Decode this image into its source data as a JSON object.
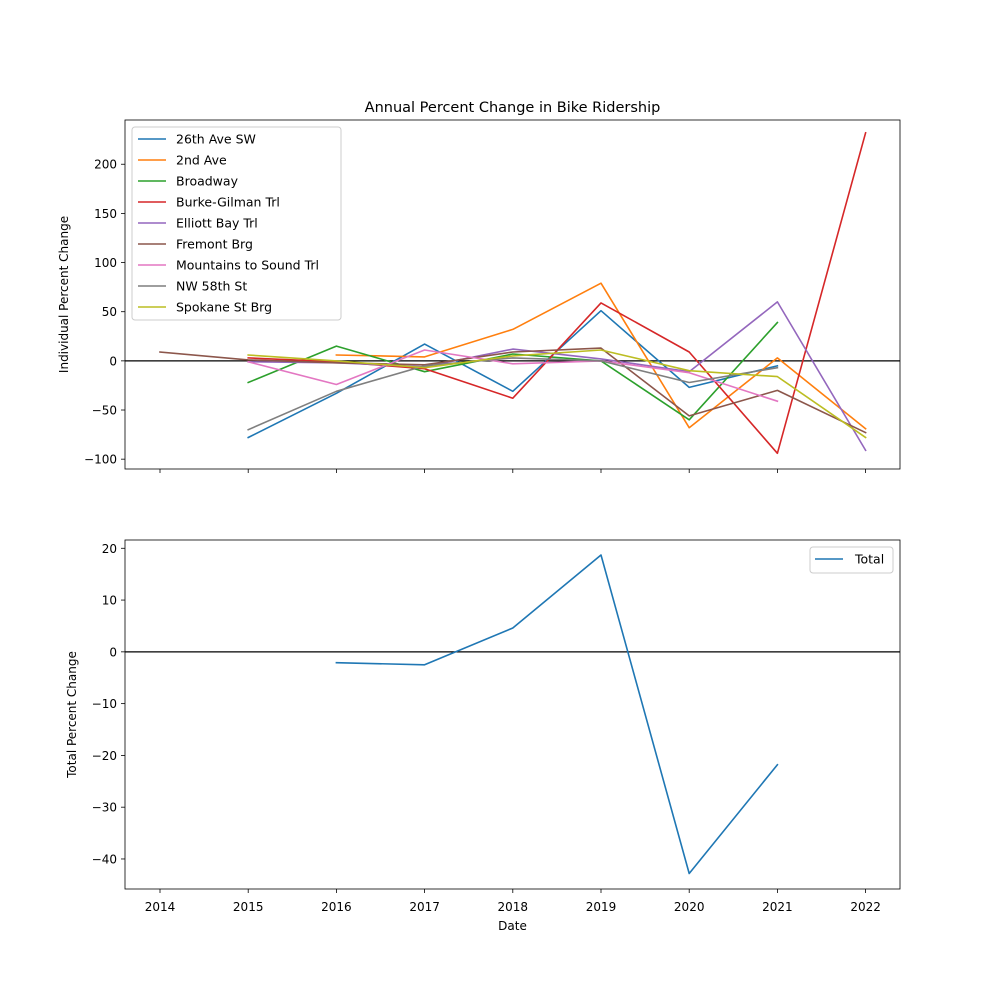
{
  "chart_data": [
    {
      "type": "line",
      "title": "Annual Percent Change in Bike Ridership",
      "xlabel": "",
      "ylabel": "Individual Percent Change",
      "x": [
        2014,
        2015,
        2016,
        2017,
        2018,
        2019,
        2020,
        2021,
        2022
      ],
      "ylim": [
        -110,
        245
      ],
      "yticks": [
        -100,
        -50,
        0,
        50,
        100,
        150,
        200
      ],
      "ytick_labels": [
        "−100",
        "−50",
        "0",
        "50",
        "100",
        "150",
        "200"
      ],
      "zero_line": true,
      "legend_position": "upper-left",
      "series": [
        {
          "name": "26th Ave SW",
          "color": "#1f77b4",
          "values": [
            null,
            -78,
            -33,
            17,
            -31,
            51,
            -27,
            -5,
            null
          ]
        },
        {
          "name": "2nd Ave",
          "color": "#ff7f0e",
          "values": [
            null,
            null,
            6,
            4,
            32,
            79,
            -68,
            3,
            -69
          ]
        },
        {
          "name": "Broadway",
          "color": "#2ca02c",
          "values": [
            null,
            -22,
            15,
            -11,
            7,
            0,
            -60,
            39,
            null
          ]
        },
        {
          "name": "Burke-Gilman Trl",
          "color": "#d62728",
          "values": [
            null,
            3,
            -1,
            -8,
            -38,
            59,
            9,
            -94,
            232
          ]
        },
        {
          "name": "Elliott Bay Trl",
          "color": "#9467bd",
          "values": [
            null,
            -1,
            -2,
            -6,
            12,
            2,
            -11,
            60,
            -91
          ]
        },
        {
          "name": "Fremont Brg",
          "color": "#8c564b",
          "values": [
            9,
            1,
            -2,
            -4,
            9,
            13,
            -56,
            -30,
            -73
          ]
        },
        {
          "name": "Mountains to Sound Trl",
          "color": "#e377c2",
          "values": [
            null,
            -1,
            -24,
            11,
            -3,
            0,
            -12,
            -41,
            null
          ]
        },
        {
          "name": "NW 58th St",
          "color": "#7f7f7f",
          "values": [
            null,
            -70,
            -31,
            -5,
            3,
            0,
            -22,
            -7,
            null
          ]
        },
        {
          "name": "Spokane St Brg",
          "color": "#bcbd22",
          "values": [
            null,
            6,
            0,
            -7,
            5,
            11,
            -10,
            -16,
            -78
          ]
        }
      ]
    },
    {
      "type": "line",
      "title": "",
      "xlabel": "Date",
      "ylabel": "Total Percent Change",
      "x": [
        2014,
        2015,
        2016,
        2017,
        2018,
        2019,
        2020,
        2021,
        2022
      ],
      "ylim": [
        -45.8,
        21.6
      ],
      "yticks": [
        -40,
        -30,
        -20,
        -10,
        0,
        10,
        20
      ],
      "ytick_labels": [
        "−40",
        "−30",
        "−20",
        "−10",
        "0",
        "10",
        "20"
      ],
      "zero_line": true,
      "legend_position": "upper-right",
      "series": [
        {
          "name": "Total",
          "color": "#1f77b4",
          "values": [
            null,
            null,
            -2.1,
            -2.5,
            4.6,
            18.7,
            -42.8,
            -21.8,
            null
          ]
        }
      ]
    }
  ]
}
